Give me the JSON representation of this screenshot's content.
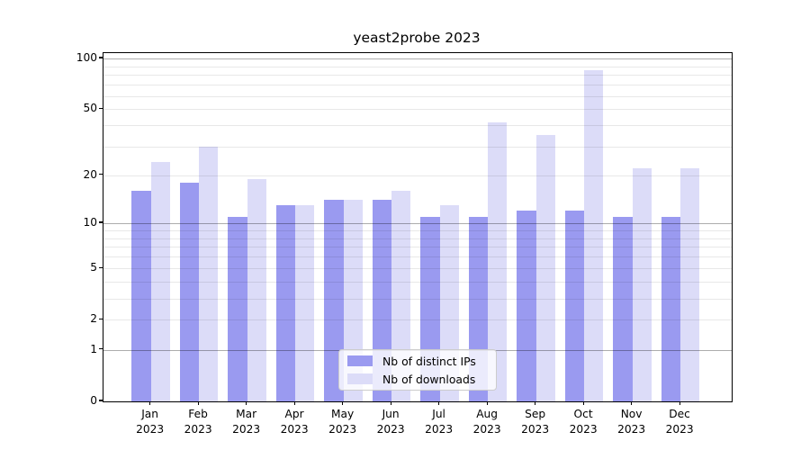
{
  "chart_data": {
    "type": "bar",
    "title": "yeast2probe 2023",
    "categories": [
      "Jan",
      "Feb",
      "Mar",
      "Apr",
      "May",
      "Jun",
      "Jul",
      "Aug",
      "Sep",
      "Oct",
      "Nov",
      "Dec"
    ],
    "category_year": "2023",
    "series": [
      {
        "name": "Nb of distinct IPs",
        "color": "#9a9af0",
        "values": [
          16,
          18,
          11,
          13,
          14,
          14,
          11,
          11,
          12,
          12,
          11,
          11
        ]
      },
      {
        "name": "Nb of downloads",
        "color": "#dcdcf8",
        "values": [
          24,
          30,
          19,
          13,
          14,
          16,
          13,
          42,
          35,
          85,
          22,
          22
        ]
      }
    ],
    "yscale": "log1p",
    "ylim": [
      0,
      107
    ],
    "ytick_labels": [
      "100",
      "50",
      "20",
      "10",
      "5",
      "2",
      "1",
      "0"
    ],
    "ytick_values": [
      100,
      50,
      20,
      10,
      5,
      2,
      1,
      0
    ],
    "grid": true,
    "legend_position": "lower center",
    "colors": {
      "axis": "#000000",
      "grid_major": "#adadad",
      "grid_minor": "#e8e8e8",
      "background": "#ffffff"
    }
  }
}
